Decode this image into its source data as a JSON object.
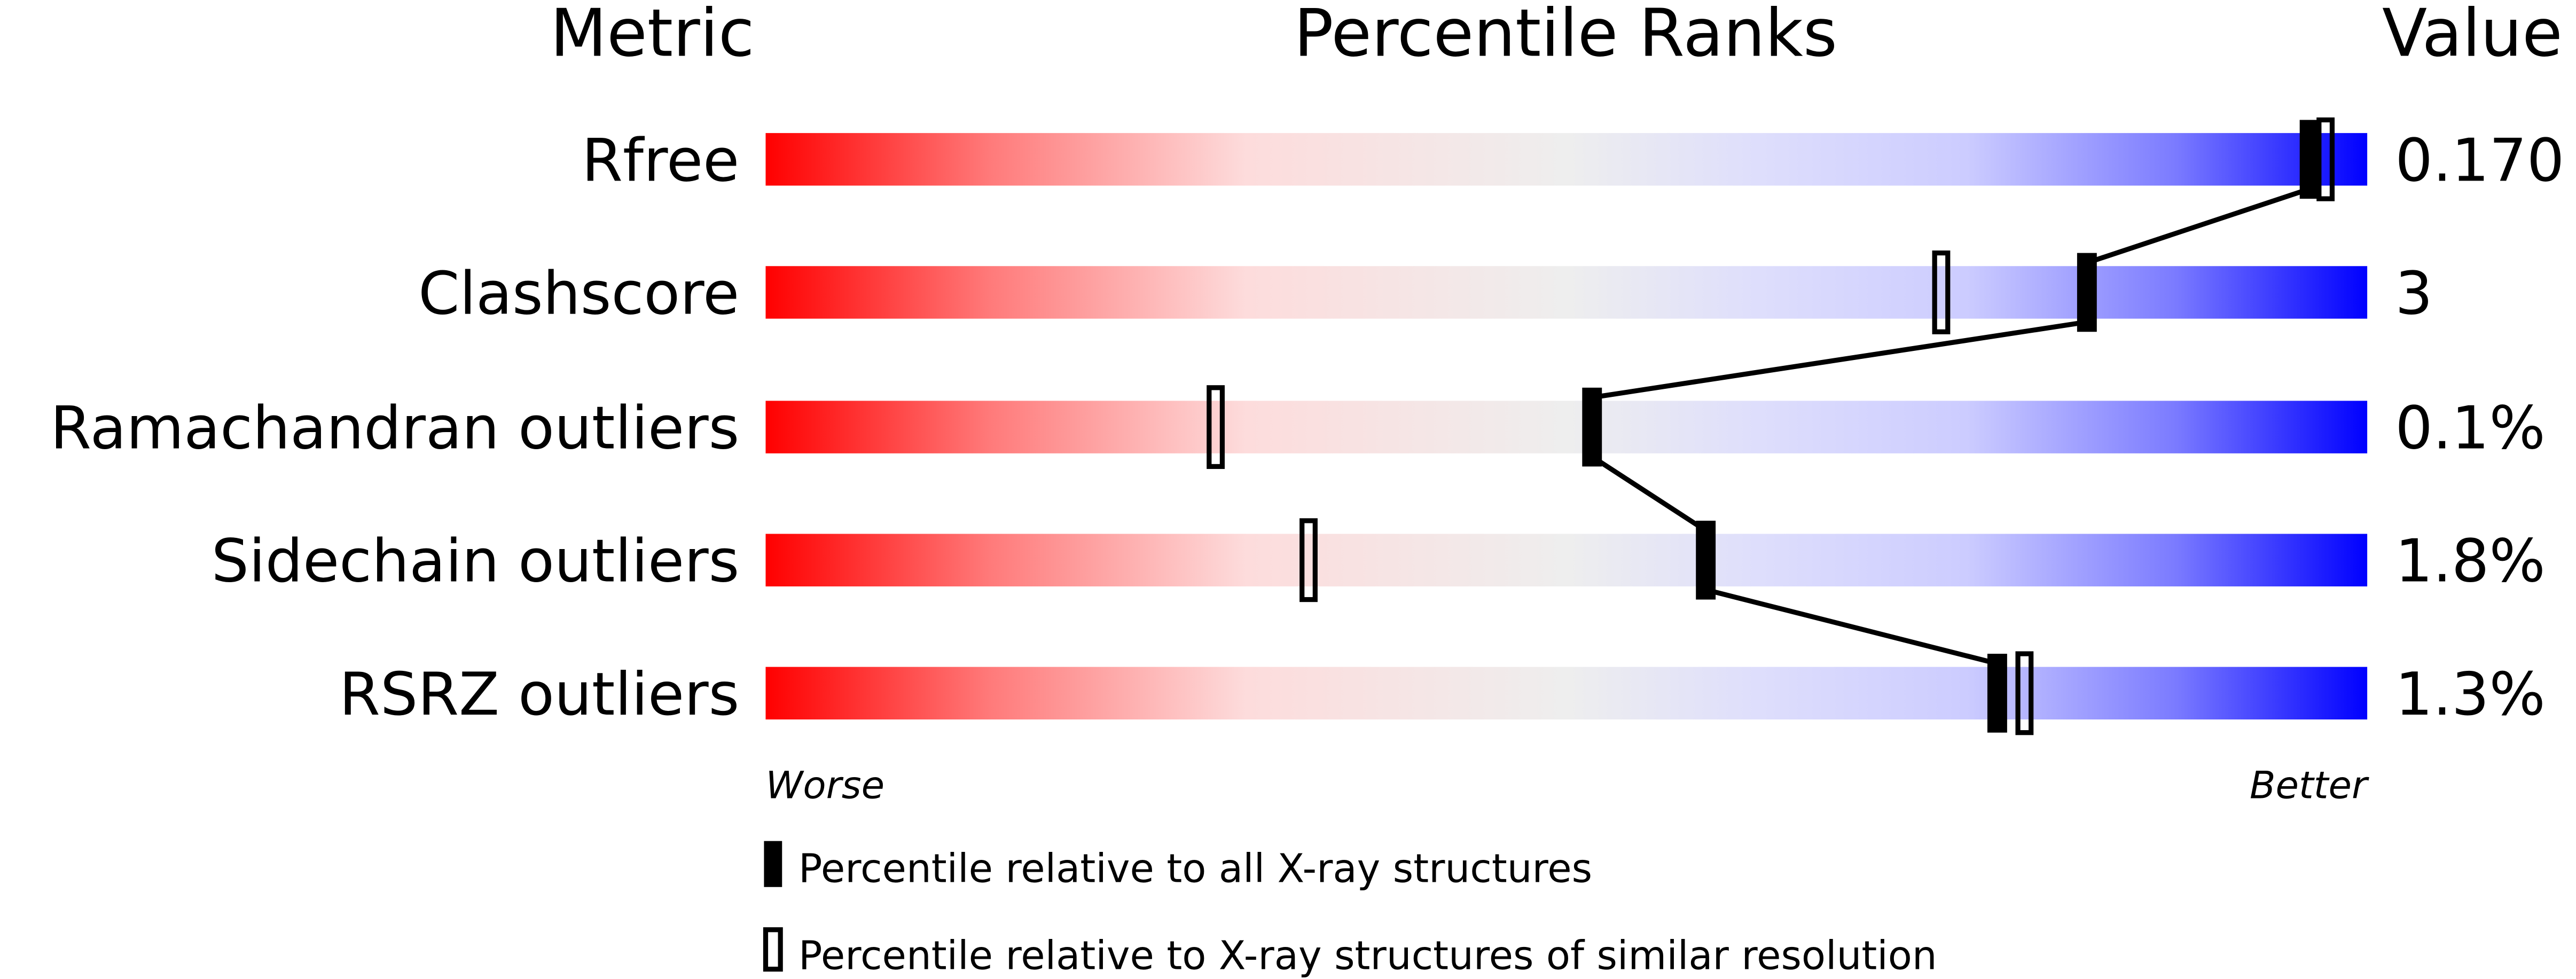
{
  "chart_data": {
    "type": "percentile-bar",
    "headers": {
      "metric": "Metric",
      "ranks": "Percentile Ranks",
      "value": "Value"
    },
    "axis": {
      "left_label": "Worse",
      "right_label": "Better",
      "range": [
        0,
        100
      ]
    },
    "rows": [
      {
        "metric": "Rfree",
        "value": "0.170",
        "percentile_all": 96.4,
        "percentile_similar": 97.4
      },
      {
        "metric": "Clashscore",
        "value": "3",
        "percentile_all": 82.5,
        "percentile_similar": 73.4
      },
      {
        "metric": "Ramachandran outliers",
        "value": "0.1%",
        "percentile_all": 51.6,
        "percentile_similar": 28.1
      },
      {
        "metric": "Sidechain outliers",
        "value": "1.8%",
        "percentile_all": 58.7,
        "percentile_similar": 33.9
      },
      {
        "metric": "RSRZ outliers",
        "value": "1.3%",
        "percentile_all": 76.9,
        "percentile_similar": 78.6
      }
    ],
    "legend": [
      {
        "marker": "filled",
        "label": "Percentile relative to all X-ray structures"
      },
      {
        "marker": "open",
        "label": "Percentile relative to X-ray structures of similar resolution"
      }
    ],
    "colors": {
      "worse": "#ff0000",
      "middle": "#eeeeee",
      "better": "#0000ff",
      "marker": "#000000"
    }
  }
}
